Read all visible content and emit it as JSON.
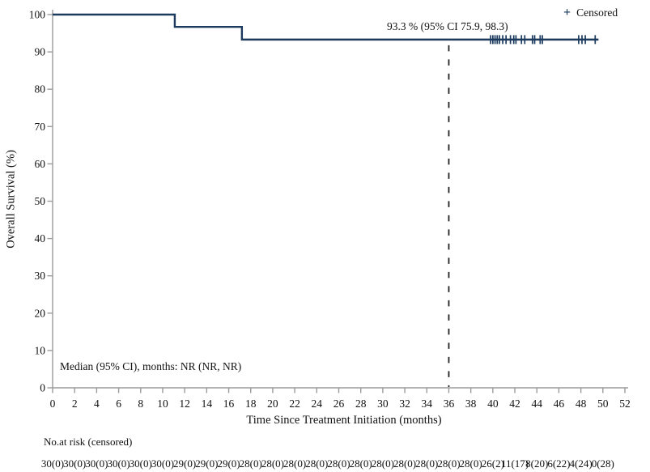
{
  "chart_data": {
    "type": "line",
    "subtype": "kaplan-meier-step-curve",
    "title": "",
    "xlabel": "Time Since Treatment Initiation (months)",
    "ylabel": "Overall Survival (%)",
    "xlim": [
      0,
      52
    ],
    "ylim": [
      0,
      100
    ],
    "grid": false,
    "x_ticks": [
      0,
      2,
      4,
      6,
      8,
      10,
      12,
      14,
      16,
      18,
      20,
      22,
      24,
      26,
      28,
      30,
      32,
      34,
      36,
      38,
      40,
      42,
      44,
      46,
      48,
      50,
      52
    ],
    "y_ticks": [
      0,
      10,
      20,
      30,
      40,
      50,
      60,
      70,
      80,
      90,
      100
    ],
    "axis_color": "#9b9b9b",
    "text_color": "#111111",
    "series": [
      {
        "name": "Overall Survival",
        "color": "#1b3a5e",
        "step_points": [
          [
            0,
            100
          ],
          [
            11.1,
            100
          ],
          [
            11.1,
            96.7
          ],
          [
            17.2,
            96.7
          ],
          [
            17.2,
            93.3
          ],
          [
            49.6,
            93.3
          ]
        ]
      }
    ],
    "censored": {
      "y": 93.3,
      "times": [
        39.8,
        40.0,
        40.2,
        40.4,
        40.6,
        40.9,
        41.2,
        41.6,
        41.9,
        42.1,
        42.6,
        42.9,
        43.6,
        43.8,
        44.3,
        44.5,
        47.8,
        48.1,
        48.4,
        49.3
      ]
    },
    "reference_line": {
      "x": 36,
      "style": "dashed",
      "color": "#222222"
    },
    "legend": {
      "marker": "+",
      "label": "Censored",
      "position": "top-right"
    },
    "annotations": {
      "estimate_label": "93.3 % (95% CI 75.9, 98.3)",
      "median_label": "Median (95% CI), months: NR (NR, NR)"
    },
    "risk_table": {
      "title": "No.at risk (censored)",
      "months": [
        0,
        2,
        4,
        6,
        8,
        10,
        12,
        14,
        16,
        18,
        20,
        22,
        24,
        26,
        28,
        30,
        32,
        34,
        36,
        38,
        40,
        42,
        44,
        46,
        48,
        50
      ],
      "values": [
        "30(0)",
        "30(0)",
        "30(0)",
        "30(0)",
        "30(0)",
        "30(0)",
        "29(0)",
        "29(0)",
        "29(0)",
        "28(0)",
        "28(0)",
        "28(0)",
        "28(0)",
        "28(0)",
        "28(0)",
        "28(0)",
        "28(0)",
        "28(0)",
        "28(0)",
        "28(0)",
        "26(2)",
        "11(17)",
        "8(20)",
        "6(22)",
        "4(24)",
        "0(28)"
      ]
    }
  }
}
